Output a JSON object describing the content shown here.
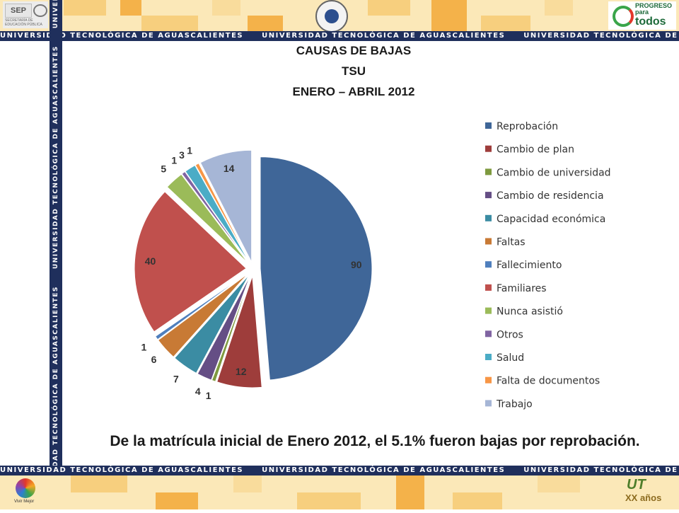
{
  "header": {
    "band_text": "UNIVERSIDAD TECNOLÓGICA DE AGUASCALIENTES",
    "logos": {
      "left": "sep-logo",
      "right": "progreso-logo",
      "center": "ut-seal"
    },
    "sep_label": "SEP",
    "sep_sub": "SECRETARÍA DE EDUCACIÓN PÚBLICA",
    "progreso_small": "PROGRESO para",
    "progreso_big": "todos",
    "colors": {
      "band": "#1f2f5c",
      "tile_light": "#fbe8b8",
      "tile_orange": "#f4b24a",
      "tile_mid": "#f7cf7e"
    }
  },
  "slide": {
    "title_line1": "CAUSAS DE BAJAS",
    "title_line2": "TSU",
    "title_line3": "ENERO – ABRIL 2012",
    "footnote": "De la matrícula inicial de Enero 2012, el 5.1% fueron bajas por reprobación."
  },
  "footer": {
    "band_text": "UNIVERSIDAD TECNOLÓGICA DE AGUASCALIENTES",
    "left_logo_text": "Vivir Mejor",
    "right_logo_ut": "UT",
    "right_logo_xx": "XX años",
    "logos": {
      "left": "vivir-mejor-logo",
      "right": "xx-anos-logo"
    }
  },
  "chart_data": {
    "type": "pie",
    "exploded": true,
    "legend_position": "right",
    "categories": [
      "Reprobación",
      "Cambio de plan",
      "Cambio de universidad",
      "Cambio de residencia",
      "Capacidad económica",
      "Faltas",
      "Fallecimiento",
      "Familiares",
      "Nunca asistió",
      "Otros",
      "Salud",
      "Falta de documentos",
      "Trabajo"
    ],
    "values": [
      90,
      12,
      1,
      4,
      7,
      6,
      1,
      40,
      5,
      1,
      3,
      1,
      14
    ],
    "colors": [
      "#3f6698",
      "#9e3d3b",
      "#7e9a3f",
      "#654e85",
      "#3b8ca3",
      "#c87a35",
      "#4f7fbd",
      "#c0504d",
      "#9bbb59",
      "#8064a2",
      "#4bacc6",
      "#f79646",
      "#a6b6d6"
    ]
  }
}
